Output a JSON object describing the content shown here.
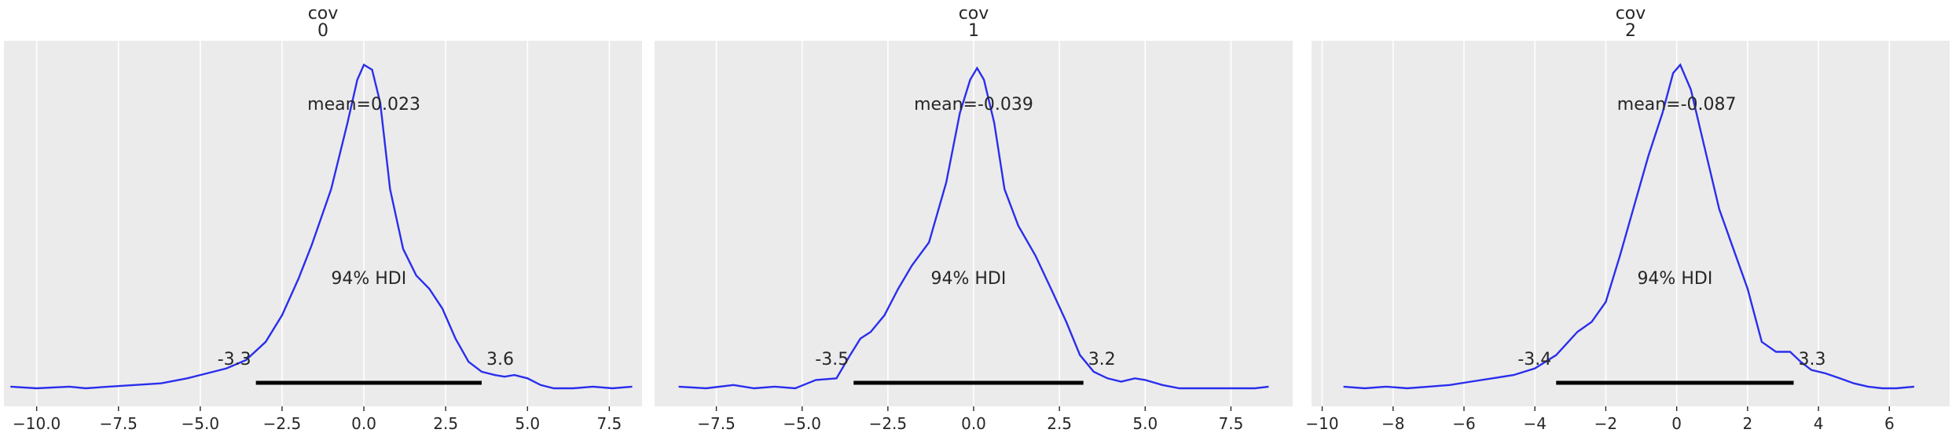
{
  "chart_data": [
    {
      "type": "line",
      "title": [
        "cov",
        "0"
      ],
      "xlim": [
        -11.0,
        8.5
      ],
      "xticks": [
        -10.0,
        -7.5,
        -5.0,
        -2.5,
        0.0,
        2.5,
        5.0,
        7.5
      ],
      "xtick_labels": [
        "−10.0",
        "−7.5",
        "−5.0",
        "−2.5",
        "0.0",
        "2.5",
        "5.0",
        "7.5"
      ],
      "grid": true,
      "mean_label": "mean=0.023",
      "hdi_label": "94% HDI",
      "hdi": [
        -3.3,
        3.6
      ],
      "hdi_labels": [
        "-3.3",
        "3.6"
      ],
      "density_max": 1.0,
      "x": [
        -10.8,
        -10.0,
        -9.0,
        -8.5,
        -7.8,
        -7.0,
        -6.2,
        -5.4,
        -4.8,
        -4.2,
        -3.6,
        -3.0,
        -2.5,
        -2.0,
        -1.6,
        -1.0,
        -0.5,
        -0.2,
        0.0,
        0.25,
        0.5,
        0.8,
        1.2,
        1.6,
        2.0,
        2.4,
        2.8,
        3.2,
        3.6,
        4.0,
        4.3,
        4.6,
        5.0,
        5.4,
        5.8,
        6.4,
        7.0,
        7.6,
        8.2
      ],
      "y": [
        0.005,
        0.0,
        0.005,
        0.0,
        0.005,
        0.01,
        0.015,
        0.03,
        0.045,
        0.06,
        0.085,
        0.14,
        0.22,
        0.33,
        0.43,
        0.6,
        0.8,
        0.93,
        0.975,
        0.96,
        0.86,
        0.6,
        0.42,
        0.34,
        0.3,
        0.24,
        0.15,
        0.08,
        0.05,
        0.04,
        0.035,
        0.04,
        0.03,
        0.01,
        0.0,
        0.0,
        0.005,
        0.0,
        0.005
      ]
    },
    {
      "type": "line",
      "title": [
        "cov",
        "1"
      ],
      "xlim": [
        -9.3,
        9.3
      ],
      "xticks": [
        -7.5,
        -5.0,
        -2.5,
        0.0,
        2.5,
        5.0,
        7.5
      ],
      "xtick_labels": [
        "−7.5",
        "−5.0",
        "−2.5",
        "0.0",
        "2.5",
        "5.0",
        "7.5"
      ],
      "grid": true,
      "mean_label": "mean=-0.039",
      "hdi_label": "94% HDI",
      "hdi": [
        -3.5,
        3.2
      ],
      "hdi_labels": [
        "-3.5",
        "3.2"
      ],
      "density_max": 1.0,
      "x": [
        -8.6,
        -7.8,
        -7.0,
        -6.4,
        -5.8,
        -5.2,
        -4.6,
        -4.0,
        -3.6,
        -3.3,
        -3.0,
        -2.6,
        -2.2,
        -1.8,
        -1.3,
        -0.8,
        -0.4,
        -0.1,
        0.1,
        0.3,
        0.6,
        0.9,
        1.3,
        1.8,
        2.3,
        2.7,
        3.1,
        3.5,
        3.9,
        4.3,
        4.7,
        5.0,
        5.5,
        6.0,
        6.5,
        7.0,
        7.6,
        8.2,
        8.6
      ],
      "y": [
        0.005,
        0.0,
        0.01,
        0.0,
        0.005,
        0.0,
        0.025,
        0.03,
        0.1,
        0.15,
        0.17,
        0.22,
        0.3,
        0.37,
        0.44,
        0.62,
        0.83,
        0.93,
        0.965,
        0.93,
        0.8,
        0.6,
        0.49,
        0.4,
        0.29,
        0.2,
        0.1,
        0.05,
        0.03,
        0.02,
        0.03,
        0.025,
        0.01,
        0.0,
        0.0,
        0.0,
        0.0,
        0.0,
        0.005
      ]
    },
    {
      "type": "line",
      "title": [
        "cov",
        "2"
      ],
      "xlim": [
        -10.3,
        7.7
      ],
      "xticks": [
        -10,
        -8,
        -6,
        -4,
        -2,
        0,
        2,
        4,
        6
      ],
      "xtick_labels": [
        "−10",
        "−8",
        "−6",
        "−4",
        "−2",
        "0",
        "2",
        "4",
        "6"
      ],
      "grid": true,
      "mean_label": "mean=-0.087",
      "hdi_label": "94% HDI",
      "hdi": [
        -3.4,
        3.3
      ],
      "hdi_labels": [
        "-3.4",
        "3.3"
      ],
      "density_max": 1.0,
      "x": [
        -9.4,
        -8.8,
        -8.2,
        -7.6,
        -7.0,
        -6.4,
        -5.8,
        -5.2,
        -4.6,
        -4.0,
        -3.4,
        -2.8,
        -2.4,
        -2.0,
        -1.6,
        -1.2,
        -0.8,
        -0.4,
        -0.1,
        0.1,
        0.4,
        0.8,
        1.2,
        1.6,
        2.0,
        2.4,
        2.8,
        3.2,
        3.5,
        3.8,
        4.2,
        4.6,
        5.0,
        5.4,
        5.8,
        6.2,
        6.7
      ],
      "y": [
        0.005,
        0.0,
        0.005,
        0.0,
        0.005,
        0.01,
        0.02,
        0.03,
        0.04,
        0.06,
        0.1,
        0.17,
        0.2,
        0.26,
        0.4,
        0.55,
        0.7,
        0.83,
        0.95,
        0.975,
        0.9,
        0.72,
        0.54,
        0.42,
        0.3,
        0.14,
        0.11,
        0.11,
        0.08,
        0.055,
        0.045,
        0.03,
        0.015,
        0.005,
        0.0,
        0.0,
        0.005
      ]
    }
  ],
  "colors": {
    "line": "#2a2eec",
    "hdi": "#000000",
    "panel": "#ebebeb",
    "grid": "#ffffff",
    "text": "#262626"
  }
}
